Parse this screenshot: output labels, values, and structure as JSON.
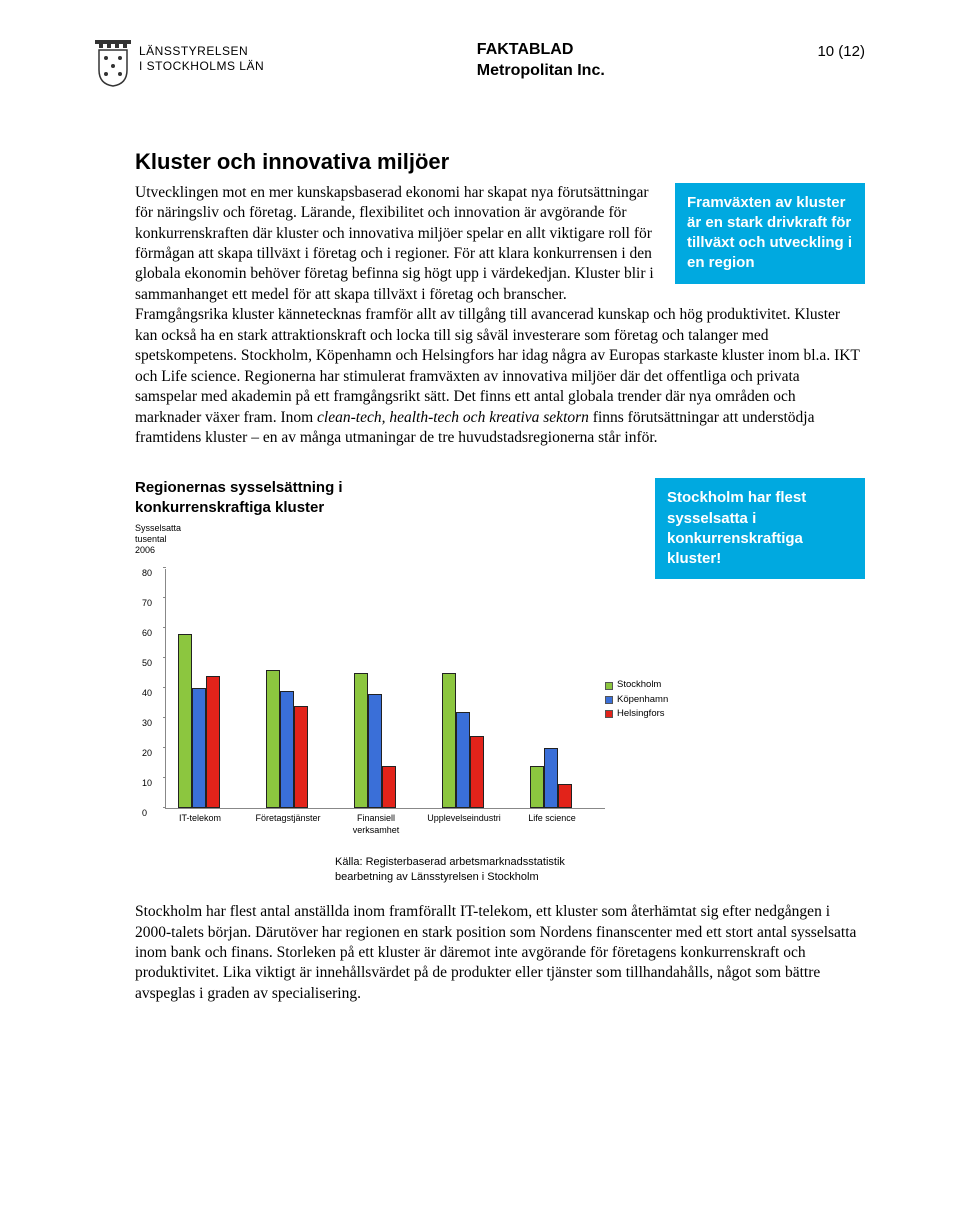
{
  "header": {
    "agency_line1": "LÄNSSTYRELSEN",
    "agency_line2": "I STOCKHOLMS LÄN",
    "doc_type": "FAKTABLAD",
    "doc_subject": "Metropolitan Inc.",
    "page_indicator": "10 (12)"
  },
  "section": {
    "heading": "Kluster och innovativa miljöer",
    "callout1": "Framväxten av kluster är en stark drivkraft för tillväxt och utveckling i en region",
    "body_pre_italic": "Utvecklingen mot en mer kunskapsbaserad ekonomi har skapat nya förutsättningar för näringsliv och företag. Lärande, flexibilitet och innovation är avgörande för konkurrenskraften där kluster och innovativa miljöer spelar en allt viktigare roll för förmågan att skapa tillväxt i företag och i regioner. För att klara konkurrensen i den globala ekonomin behöver företag befinna sig högt upp i värdekedjan. Kluster blir i sammanhanget ett medel för att skapa tillväxt i företag och branscher. Framgångsrika kluster kännetecknas framför allt av tillgång till avancerad kunskap och hög produktivitet. Kluster kan också ha en stark attraktionskraft och locka till sig såväl investerare som företag och talanger med spetskompetens. Stockholm, Köpenhamn och Helsingfors har idag några av Europas starkaste kluster inom bl.a. IKT och Life science. Regionerna har stimulerat framväxten av innovativa miljöer där det offentliga och privata samspelar med akademin på ett framgångsrikt sätt. Det finns ett antal globala trender där nya områden och marknader växer fram. Inom ",
    "body_italic": "clean-tech, health-tech och kreativa sektorn",
    "body_post_italic": " finns förutsättningar att understödja framtidens kluster – en av många utmaningar de tre huvudstadsregionerna står inför."
  },
  "chart": {
    "title": "Regionernas sysselsättning i konkurrenskraftiga kluster",
    "callout2": "Stockholm har flest sysselsatta i konkurrenskraftiga kluster!",
    "y_axis_label_l1": "Sysselsatta",
    "y_axis_label_l2": "tusental",
    "y_axis_label_l3": "2006",
    "ylim": [
      0,
      80
    ],
    "ytick_step": 10,
    "categories": [
      "IT-telekom",
      "Företagstjänster",
      "Finansiell verksamhet",
      "Upplevelseindustri",
      "Life science"
    ],
    "series": [
      {
        "name": "Stockholm",
        "color": "#8cc63f",
        "values": [
          58,
          46,
          45,
          45,
          14
        ]
      },
      {
        "name": "Köpenhamn",
        "color": "#3a6fd8",
        "values": [
          40,
          39,
          38,
          32,
          20
        ]
      },
      {
        "name": "Helsingfors",
        "color": "#e2231a",
        "values": [
          44,
          34,
          14,
          24,
          8
        ]
      }
    ],
    "bar_border_color": "#222222",
    "axis_color": "#888888",
    "source_l1": "Källa: Registerbaserad arbetsmarknadsstatistik",
    "source_l2": "bearbetning av Länsstyrelsen i Stockholm"
  },
  "closing_text": "Stockholm har flest antal anställda inom framförallt IT-telekom, ett kluster som återhämtat sig efter nedgången i 2000-talets början. Därutöver har regionen en stark position som Nordens finanscenter med ett stort antal sysselsatta inom bank och finans. Storleken på ett kluster är däremot inte avgörande för företagens konkurrenskraft och produktivitet. Lika viktigt är innehållsvärdet på de produkter eller tjänster som tillhandahålls, något som bättre avspeglas i graden av specialisering.",
  "palette": {
    "callout_bg": "#00a9e0",
    "callout_fg": "#ffffff"
  }
}
